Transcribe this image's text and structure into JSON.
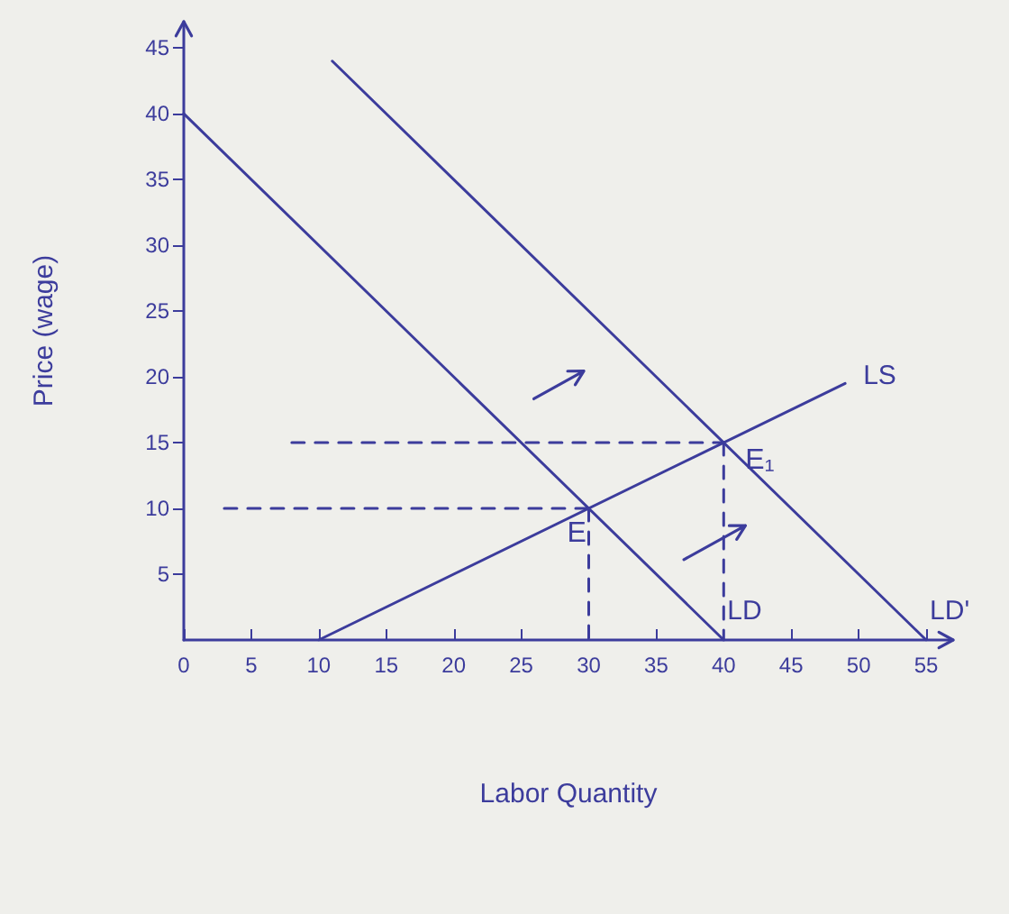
{
  "chart_data": {
    "type": "line",
    "xlabel": "Labor Quantity",
    "ylabel": "Price (wage)",
    "xlim": [
      0,
      57
    ],
    "ylim": [
      0,
      47
    ],
    "xticks": [
      0,
      5,
      10,
      15,
      20,
      25,
      30,
      35,
      40,
      45,
      50,
      55
    ],
    "yticks": [
      5,
      10,
      15,
      20,
      25,
      30,
      35,
      40,
      45
    ],
    "grid": false,
    "legend": false,
    "marker": "none",
    "line_style": "solid",
    "series": [
      {
        "name": "LD",
        "color": "#3c3c9c",
        "x": [
          0,
          40
        ],
        "values": [
          40,
          0
        ]
      },
      {
        "name": "LD'",
        "color": "#3c3c9c",
        "x": [
          11,
          55
        ],
        "values": [
          44,
          0
        ]
      },
      {
        "name": "LS",
        "color": "#3c3c9c",
        "x": [
          10,
          49
        ],
        "values": [
          0,
          19.5
        ]
      },
      {
        "color": "#3c3c9c",
        "line_style": "dashed",
        "x": [
          8,
          40
        ],
        "values": [
          15,
          15
        ]
      },
      {
        "color": "#3c3c9c",
        "line_style": "dashed",
        "x": [
          3,
          30
        ],
        "values": [
          10,
          10
        ]
      },
      {
        "color": "#3c3c9c",
        "line_style": "dashed",
        "x": [
          30,
          30
        ],
        "values": [
          10,
          0
        ]
      },
      {
        "color": "#3c3c9c",
        "line_style": "dashed",
        "x": [
          40,
          40
        ],
        "values": [
          15,
          0
        ]
      }
    ],
    "annotations": [
      {
        "text": "E",
        "x": 30,
        "y": 10
      },
      {
        "text": "E₁",
        "x": 40,
        "y": 15
      }
    ]
  }
}
